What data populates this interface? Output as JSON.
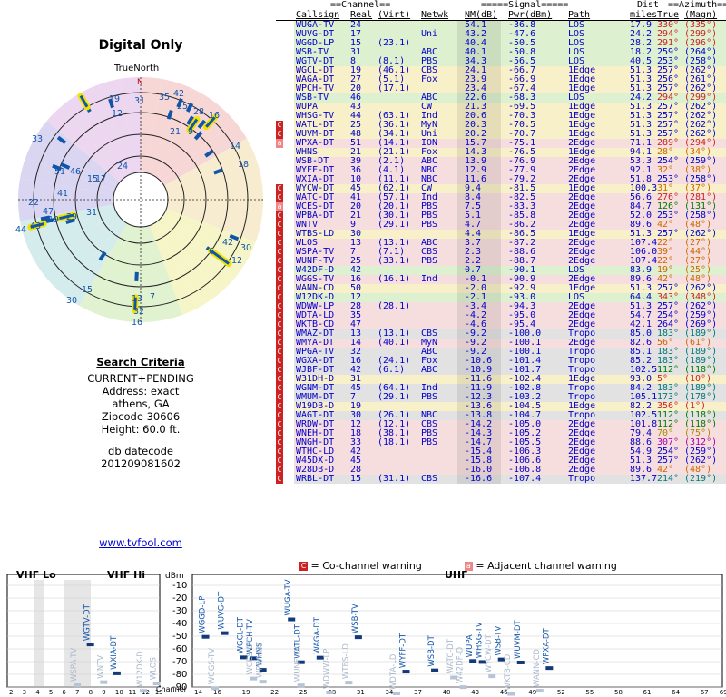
{
  "title": "Digital Only",
  "true_north_label": "TrueNorth",
  "north_marker": "N",
  "criteria": {
    "heading": "Search Criteria",
    "lines": [
      "CURRENT+PENDING",
      "Address: exact",
      "athens, GA",
      "Zipcode 30606",
      "Height: 60.0 ft."
    ],
    "db_label": "db datecode",
    "db_value": "201209081602"
  },
  "website": "www.tvfool.com",
  "table": {
    "group_headers": {
      "channel": "==Channel==",
      "signal": "=====Signal=====",
      "dist": "Dist",
      "azimuth": "==Azimuth=="
    },
    "columns": [
      "Callsign",
      "Real",
      "(Virt)",
      "Netwk",
      "NM(dB)",
      "Pwr(dBm)",
      "Path",
      "miles",
      "True",
      "(Magn)"
    ],
    "rows": [
      [
        "",
        "WUGA-TV",
        "24",
        "",
        "",
        "54.1",
        "-36.8",
        "LOS",
        "17.9",
        "330°",
        "(335°)",
        "#cc2222"
      ],
      [
        "",
        "WUVG-DT",
        "17",
        "",
        "Uni",
        "43.2",
        "-47.6",
        "LOS",
        "24.2",
        "294°",
        "(299°)",
        "#cc2222"
      ],
      [
        "",
        "WGGD-LP",
        "15",
        "(23.1)",
        "",
        "40.4",
        "-50.5",
        "LOS",
        "28.2",
        "291°",
        "(296°)",
        "#cc2222"
      ],
      [
        "",
        "WSB-TV",
        "31",
        "",
        "ABC",
        "40.1",
        "-50.8",
        "LOS",
        "18.2",
        "259°",
        "(264°)",
        "#0000cc"
      ],
      [
        "",
        "WGTV-DT",
        "8",
        "(8.1)",
        "PBS",
        "34.3",
        "-56.5",
        "LOS",
        "40.5",
        "253°",
        "(258°)",
        "#0000cc"
      ],
      [
        "",
        "WGCL-DT",
        "19",
        "(46.1)",
        "CBS",
        "24.1",
        "-66.7",
        "1Edge",
        "51.3",
        "257°",
        "(262°)",
        "#0000cc"
      ],
      [
        "",
        "WAGA-DT",
        "27",
        "(5.1)",
        "Fox",
        "23.9",
        "-66.9",
        "1Edge",
        "51.3",
        "256°",
        "(261°)",
        "#0000cc"
      ],
      [
        "",
        "WPCH-TV",
        "20",
        "(17.1)",
        "",
        "23.4",
        "-67.4",
        "1Edge",
        "51.3",
        "257°",
        "(262°)",
        "#0000cc"
      ],
      [
        "",
        "WSB-TV",
        "46",
        "",
        "ABC",
        "22.6",
        "-68.3",
        "LOS",
        "24.2",
        "294°",
        "(299°)",
        "#cc2222"
      ],
      [
        "",
        "WUPA",
        "43",
        "",
        "CW",
        "21.3",
        "-69.5",
        "1Edge",
        "51.3",
        "257°",
        "(262°)",
        "#0000cc"
      ],
      [
        "",
        "WHSG-TV",
        "44",
        "(63.1)",
        "Ind",
        "20.6",
        "-70.3",
        "1Edge",
        "51.3",
        "257°",
        "(262°)",
        "#0000cc"
      ],
      [
        "C",
        "WATL-DT",
        "25",
        "(36.1)",
        "MyN",
        "20.3",
        "-70.5",
        "1Edge",
        "51.3",
        "257°",
        "(262°)",
        "#0000cc"
      ],
      [
        "C",
        "WUVM-DT",
        "48",
        "(34.1)",
        "Uni",
        "20.2",
        "-70.7",
        "1Edge",
        "51.3",
        "257°",
        "(262°)",
        "#0000cc"
      ],
      [
        "a",
        "WPXA-DT",
        "51",
        "(14.1)",
        "ION",
        "15.7",
        "-75.1",
        "2Edge",
        "71.1",
        "289°",
        "(294°)",
        "#cc2222"
      ],
      [
        "",
        "WHNS",
        "21",
        "(21.1)",
        "Fox",
        "14.3",
        "-76.5",
        "1Edge",
        "94.1",
        "28°",
        "(34°)",
        "#cc6600"
      ],
      [
        "",
        "WSB-DT",
        "39",
        "(2.1)",
        "ABC",
        "13.9",
        "-76.9",
        "2Edge",
        "53.3",
        "254°",
        "(259°)",
        "#0000cc"
      ],
      [
        "",
        "WYFF-DT",
        "36",
        "(4.1)",
        "NBC",
        "12.9",
        "-77.9",
        "2Edge",
        "92.1",
        "32°",
        "(38°)",
        "#cc6600"
      ],
      [
        "",
        "WXIA-DT",
        "10",
        "(11.1)",
        "NBC",
        "11.6",
        "-79.2",
        "2Edge",
        "51.8",
        "253°",
        "(258°)",
        "#0000cc"
      ],
      [
        "C",
        "WYCW-DT",
        "45",
        "(62.1)",
        "CW",
        "9.4",
        "-81.5",
        "1Edge",
        "100.3",
        "31°",
        "(37°)",
        "#cc6600"
      ],
      [
        "C",
        "WATC-DT",
        "41",
        "(57.1)",
        "Ind",
        "8.4",
        "-82.5",
        "2Edge",
        "56.6",
        "276°",
        "(281°)",
        "#cc2222"
      ],
      [
        "a",
        "WCES-DT",
        "20",
        "(20.1)",
        "PBS",
        "7.5",
        "-83.3",
        "2Edge",
        "84.7",
        "126°",
        "(131°)",
        "#007700"
      ],
      [
        "C",
        "WPBA-DT",
        "21",
        "(30.1)",
        "PBS",
        "5.1",
        "-85.8",
        "2Edge",
        "52.0",
        "253°",
        "(258°)",
        "#0000cc"
      ],
      [
        "C",
        "WNTV",
        "9",
        "(29.1)",
        "PBS",
        "4.7",
        "-86.2",
        "2Edge",
        "89.6",
        "42°",
        "(48°)",
        "#cc6600"
      ],
      [
        "C",
        "WTBS-LD",
        "30",
        "",
        "",
        "4.4",
        "-86.5",
        "1Edge",
        "51.3",
        "257°",
        "(262°)",
        "#0000cc"
      ],
      [
        "C",
        "WLOS",
        "13",
        "(13.1)",
        "ABC",
        "3.7",
        "-87.2",
        "2Edge",
        "107.4",
        "22°",
        "(27°)",
        "#cc6600"
      ],
      [
        "C",
        "WSPA-TV",
        "7",
        "(7.1)",
        "CBS",
        "2.3",
        "-88.6",
        "2Edge",
        "106.0",
        "39°",
        "(44°)",
        "#cc6600"
      ],
      [
        "C",
        "WUNF-TV",
        "25",
        "(33.1)",
        "PBS",
        "2.2",
        "-88.7",
        "2Edge",
        "107.4",
        "22°",
        "(27°)",
        "#cc6600"
      ],
      [
        "C",
        "W42DF-D",
        "42",
        "",
        "",
        "0.7",
        "-90.1",
        "LOS",
        "83.9",
        "19°",
        "(25°)",
        "#cc6600"
      ],
      [
        "C",
        "WGGS-TV",
        "16",
        "(16.1)",
        "Ind",
        "-0.1",
        "-90.9",
        "2Edge",
        "89.6",
        "42°",
        "(48°)",
        "#cc6600"
      ],
      [
        "C",
        "WANN-CD",
        "50",
        "",
        "",
        "-2.0",
        "-92.9",
        "1Edge",
        "51.3",
        "257°",
        "(262°)",
        "#0000cc"
      ],
      [
        "C",
        "W12DK-D",
        "12",
        "",
        "",
        "-2.1",
        "-93.0",
        "LOS",
        "64.4",
        "343°",
        "(348°)",
        "#cc2222"
      ],
      [
        "C",
        "WDWW-LP",
        "28",
        "(28.1)",
        "",
        "-3.4",
        "-94.3",
        "2Edge",
        "51.3",
        "257°",
        "(262°)",
        "#0000cc"
      ],
      [
        "C",
        "WDTA-LD",
        "35",
        "",
        "",
        "-4.2",
        "-95.0",
        "2Edge",
        "54.7",
        "254°",
        "(259°)",
        "#0000cc"
      ],
      [
        "C",
        "WKTB-CD",
        "47",
        "",
        "",
        "-4.6",
        "-95.4",
        "2Edge",
        "42.1",
        "264°",
        "(269°)",
        "#0000cc"
      ],
      [
        "C",
        "WMAZ-DT",
        "13",
        "(13.1)",
        "CBS",
        "-9.2",
        "-100.0",
        "Tropo",
        "85.0",
        "183°",
        "(189°)",
        "#007777"
      ],
      [
        "C",
        "WMYA-DT",
        "14",
        "(40.1)",
        "MyN",
        "-9.2",
        "-100.1",
        "2Edge",
        "82.6",
        "56°",
        "(61°)",
        "#cc6600"
      ],
      [
        "C",
        "WPGA-TV",
        "32",
        "",
        "ABC",
        "-9.2",
        "-100.1",
        "Tropo",
        "85.1",
        "183°",
        "(189°)",
        "#007777"
      ],
      [
        "C",
        "WGXA-DT",
        "16",
        "(24.1)",
        "Fox",
        "-10.6",
        "-101.4",
        "Tropo",
        "85.2",
        "183°",
        "(189°)",
        "#007777"
      ],
      [
        "C",
        "WJBF-DT",
        "42",
        "(6.1)",
        "ABC",
        "-10.9",
        "-101.7",
        "Tropo",
        "102.5",
        "112°",
        "(118°)",
        "#007700"
      ],
      [
        "C",
        "W31DH-D",
        "31",
        "",
        "",
        "-11.6",
        "-102.4",
        "1Edge",
        "93.0",
        "5°",
        "(10°)",
        "#cc2222"
      ],
      [
        "C",
        "WGNM-DT",
        "45",
        "(64.1)",
        "Ind",
        "-11.9",
        "-102.8",
        "Tropo",
        "84.2",
        "183°",
        "(189°)",
        "#007777"
      ],
      [
        "C",
        "WMUM-DT",
        "7",
        "(29.1)",
        "PBS",
        "-12.3",
        "-103.2",
        "Tropo",
        "105.1",
        "173°",
        "(178°)",
        "#007777"
      ],
      [
        "C",
        "W19DB-D",
        "19",
        "",
        "",
        "-13.6",
        "-104.5",
        "1Edge",
        "82.2",
        "356°",
        "(1°)",
        "#cc2222"
      ],
      [
        "C",
        "WAGT-DT",
        "30",
        "(26.1)",
        "NBC",
        "-13.8",
        "-104.7",
        "Tropo",
        "102.5",
        "112°",
        "(118°)",
        "#007700"
      ],
      [
        "C",
        "WRDW-DT",
        "12",
        "(12.1)",
        "CBS",
        "-14.2",
        "-105.0",
        "2Edge",
        "101.8",
        "112°",
        "(118°)",
        "#007700"
      ],
      [
        "C",
        "WNEH-DT",
        "18",
        "(38.1)",
        "PBS",
        "-14.3",
        "-105.2",
        "2Edge",
        "79.4",
        "70°",
        "(75°)",
        "#aa8800"
      ],
      [
        "C",
        "WNGH-DT",
        "33",
        "(18.1)",
        "PBS",
        "-14.7",
        "-105.5",
        "2Edge",
        "88.6",
        "307°",
        "(312°)",
        "#aa00aa"
      ],
      [
        "C",
        "WTHC-LD",
        "42",
        "",
        "",
        "-15.4",
        "-106.3",
        "2Edge",
        "54.9",
        "254°",
        "(259°)",
        "#0000cc"
      ],
      [
        "C",
        "W45DX-D",
        "45",
        "",
        "",
        "-15.8",
        "-106.6",
        "2Edge",
        "51.3",
        "257°",
        "(262°)",
        "#0000cc"
      ],
      [
        "C",
        "W28DB-D",
        "28",
        "",
        "",
        "-16.0",
        "-106.8",
        "2Edge",
        "89.6",
        "42°",
        "(48°)",
        "#cc6600"
      ],
      [
        "C",
        "WRBL-DT",
        "15",
        "(31.1)",
        "CBS",
        "-16.6",
        "-107.4",
        "Tropo",
        "137.7",
        "214°",
        "(219°)",
        "#007777"
      ]
    ]
  },
  "legend": {
    "cochannel_icon": "C",
    "cochannel": "= Co-channel warning",
    "adjacent_icon": "a",
    "adjacent": "= Adjacent channel warning"
  },
  "spectrum": {
    "vhf_lo_label": "VHF Lo",
    "vhf_hi_label": "VHF Hi",
    "uhf_label": "UHF",
    "unit_label": "dBm",
    "axis_label": "Channel",
    "y_ticks": [
      "-10",
      "-20",
      "-30",
      "-40",
      "-50",
      "-60",
      "-70",
      "-80",
      "-90"
    ],
    "channel_ticks_vhf": [
      "2",
      "3",
      "4",
      "5",
      "6",
      "7",
      "8",
      "9",
      "10",
      "11",
      "12",
      "13"
    ],
    "channel_ticks_uhf": [
      "14",
      "16",
      "19",
      "22",
      "25",
      "28",
      "31",
      "34",
      "37",
      "40",
      "43",
      "46",
      "49",
      "52",
      "55",
      "58",
      "61",
      "64",
      "67",
      "69"
    ],
    "stations": [
      {
        "ch": 24,
        "pwr": -36.8,
        "name": "WUGA-TV"
      },
      {
        "ch": 17,
        "pwr": -47.6,
        "name": "WUVG-DT"
      },
      {
        "ch": 15,
        "pwr": -50.5,
        "name": "WGGD-LP"
      },
      {
        "ch": 31,
        "pwr": -50.8,
        "name": "WSB-TV"
      },
      {
        "ch": 8,
        "pwr": -56.5,
        "name": "WGTV-DT"
      },
      {
        "ch": 19,
        "pwr": -66.7,
        "name": "WGCL-DT"
      },
      {
        "ch": 27,
        "pwr": -66.9,
        "name": "WAGA-DT"
      },
      {
        "ch": 20,
        "pwr": -67.4,
        "name": "WPCH-TV"
      },
      {
        "ch": 46,
        "pwr": -68.3,
        "name": "WSB-TV"
      },
      {
        "ch": 43,
        "pwr": -69.5,
        "name": "WUPA"
      },
      {
        "ch": 44,
        "pwr": -70.3,
        "name": "WHSG-TV"
      },
      {
        "ch": 25,
        "pwr": -70.5,
        "name": "WATL-DT"
      },
      {
        "ch": 48,
        "pwr": -70.7,
        "name": "WUVM-DT"
      },
      {
        "ch": 51,
        "pwr": -75.1,
        "name": "WPXA-DT"
      },
      {
        "ch": 21,
        "pwr": -76.5,
        "name": "WHNS"
      },
      {
        "ch": 39,
        "pwr": -76.9,
        "name": "WSB-DT"
      },
      {
        "ch": 36,
        "pwr": -77.9,
        "name": "WYFF-DT"
      },
      {
        "ch": 10,
        "pwr": -79.2,
        "name": "WXIA-DT"
      },
      {
        "ch": 45,
        "pwr": -81.5,
        "name": "WYCW-DT"
      },
      {
        "ch": 41,
        "pwr": -82.5,
        "name": "WATC-DT"
      },
      {
        "ch": 20,
        "pwr": -83.3,
        "name": "WCES-DT"
      },
      {
        "ch": 21,
        "pwr": -85.8,
        "name": "WPBA-DT"
      },
      {
        "ch": 9,
        "pwr": -86.2,
        "name": "WNTV"
      },
      {
        "ch": 30,
        "pwr": -86.5,
        "name": "WTBS-LD"
      },
      {
        "ch": 13,
        "pwr": -87.2,
        "name": "WLOS"
      },
      {
        "ch": 7,
        "pwr": -88.6,
        "name": "WSPA-TV"
      },
      {
        "ch": 25,
        "pwr": -88.7,
        "name": "WUNF-TV"
      },
      {
        "ch": 42,
        "pwr": -90.1,
        "name": "W42DF-D"
      },
      {
        "ch": 16,
        "pwr": -90.9,
        "name": "WGGS-TV"
      },
      {
        "ch": 50,
        "pwr": -92.9,
        "name": "WANN-CD"
      },
      {
        "ch": 12,
        "pwr": -93.0,
        "name": "W12DK-D"
      },
      {
        "ch": 28,
        "pwr": -94.3,
        "name": "WDWW-LP"
      },
      {
        "ch": 35,
        "pwr": -95.0,
        "name": "WDTA-LD"
      },
      {
        "ch": 47,
        "pwr": -95.4,
        "name": "WKTB-CD"
      }
    ]
  },
  "polar": {
    "labels": [
      "19",
      "31",
      "35",
      "42",
      "25",
      "28",
      "16",
      "9",
      "21",
      "12",
      "33",
      "24",
      "14",
      "18",
      "51",
      "46",
      "15",
      "17",
      "41",
      "22",
      "47",
      "44",
      "43",
      "29",
      "19",
      "31",
      "6",
      "42",
      "30",
      "12",
      "15",
      "30",
      "13",
      "7",
      "16",
      "32"
    ]
  },
  "colors": {
    "cochannel": "#cc2222",
    "adjacent": "#ee8888",
    "los": "#ddf0d0",
    "edge1": "#f8f0c8",
    "edge2": "#f6dede",
    "tropo": "#e2e2e2",
    "bar": "#1155aa",
    "highlight": "#f2e200"
  }
}
